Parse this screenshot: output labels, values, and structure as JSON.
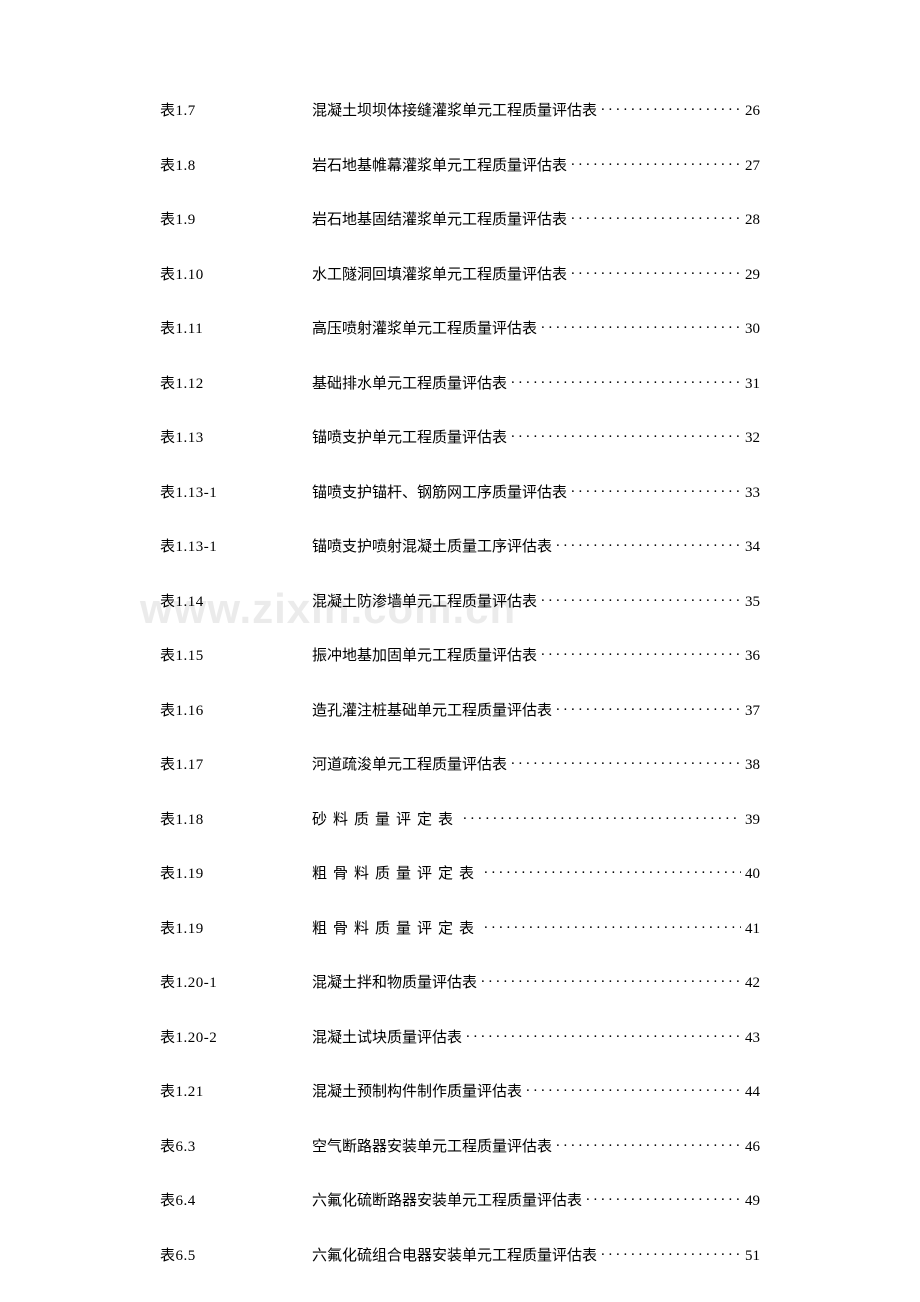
{
  "watermark": "www.zixin.com.cn",
  "entries": [
    {
      "label": "表1.7",
      "title": "混凝土坝坝体接缝灌浆单元工程质量评估表",
      "page": "26",
      "spaced": false
    },
    {
      "label": "表1.8",
      "title": "岩石地基帷幕灌浆单元工程质量评估表",
      "page": "27",
      "spaced": false
    },
    {
      "label": "表1.9",
      "title": "岩石地基固结灌浆单元工程质量评估表",
      "page": "28",
      "spaced": false
    },
    {
      "label": "表1.10",
      "title": "水工隧洞回填灌浆单元工程质量评估表",
      "page": "29",
      "spaced": false
    },
    {
      "label": "表1.11",
      "title": "高压喷射灌浆单元工程质量评估表",
      "page": "30",
      "spaced": false
    },
    {
      "label": "表1.12",
      "title": "基础排水单元工程质量评估表",
      "page": "31",
      "spaced": false
    },
    {
      "label": "表1.13",
      "title": "锚喷支护单元工程质量评估表",
      "page": "32",
      "spaced": false
    },
    {
      "label": "表1.13-1",
      "title": "锚喷支护锚杆、钢筋网工序质量评估表",
      "page": "33",
      "spaced": false
    },
    {
      "label": "表1.13-1",
      "title": "锚喷支护喷射混凝土质量工序评估表",
      "page": "34",
      "spaced": false
    },
    {
      "label": "表1.14",
      "title": "混凝土防渗墙单元工程质量评估表",
      "page": "35",
      "spaced": false
    },
    {
      "label": "表1.15",
      "title": "振冲地基加固单元工程质量评估表",
      "page": "36",
      "spaced": false
    },
    {
      "label": "表1.16",
      "title": "造孔灌注桩基础单元工程质量评估表",
      "page": "37",
      "spaced": false
    },
    {
      "label": "表1.17",
      "title": "河道疏浚单元工程质量评估表",
      "page": "38",
      "spaced": false
    },
    {
      "label": "表1.18",
      "title": "砂料质量评定表",
      "page": "39",
      "spaced": true
    },
    {
      "label": "表1.19",
      "title": "粗骨料质量评定表",
      "page": "40",
      "spaced": true
    },
    {
      "label": "表1.19",
      "title": "粗骨料质量评定表",
      "page": "41",
      "spaced": true
    },
    {
      "label": "表1.20-1",
      "title": "混凝土拌和物质量评估表",
      "page": "42",
      "spaced": false
    },
    {
      "label": "表1.20-2",
      "title": "混凝土试块质量评估表",
      "page": "43",
      "spaced": false
    },
    {
      "label": "表1.21",
      "title": "混凝土预制构件制作质量评估表",
      "page": "44",
      "spaced": false
    },
    {
      "label": "表6.3",
      "title": "空气断路器安装单元工程质量评估表",
      "page": "46",
      "spaced": false
    },
    {
      "label": "表6.4",
      "title": "六氟化硫断路器安装单元工程质量评估表",
      "page": "49",
      "spaced": false
    },
    {
      "label": "表6.5",
      "title": "六氟化硫组合电器安装单元工程质量评估表",
      "page": "51",
      "spaced": false
    }
  ]
}
